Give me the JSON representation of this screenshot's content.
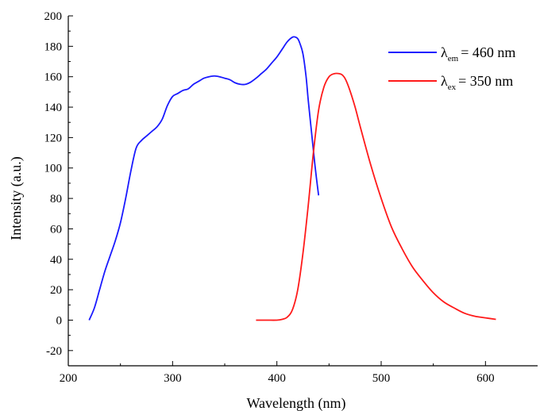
{
  "chart_data": {
    "type": "line",
    "xlabel": "Wavelength (nm)",
    "ylabel": "Intensity (a.u.)",
    "xlim": [
      200,
      650
    ],
    "ylim": [
      -30,
      200
    ],
    "x_ticks": [
      200,
      300,
      400,
      500,
      600
    ],
    "y_ticks": [
      -20,
      0,
      20,
      40,
      60,
      80,
      100,
      120,
      140,
      160,
      180,
      200
    ],
    "x_tick_labels": [
      "200",
      "300",
      "400",
      "500",
      "600"
    ],
    "y_tick_labels": [
      "-20",
      "0",
      "20",
      "40",
      "60",
      "80",
      "100",
      "120",
      "140",
      "160",
      "180",
      "200"
    ],
    "grid": false,
    "legend_position": "top-right",
    "series": [
      {
        "legend_symbol": "λ",
        "legend_subscript": "em",
        "legend_value": "= 460 nm",
        "color": "#1a1aff",
        "x": [
          220,
          225,
          230,
          235,
          240,
          245,
          250,
          255,
          260,
          265,
          270,
          275,
          280,
          285,
          290,
          295,
          300,
          305,
          310,
          315,
          320,
          325,
          330,
          335,
          340,
          345,
          350,
          355,
          360,
          365,
          370,
          375,
          380,
          385,
          390,
          395,
          400,
          405,
          410,
          415,
          418,
          420,
          422,
          425,
          428,
          430,
          433,
          436,
          438,
          440
        ],
        "y": [
          0,
          8,
          20,
          32,
          42,
          52,
          64,
          80,
          98,
          113,
          118,
          121,
          124,
          127,
          132,
          141,
          147,
          149,
          151,
          152,
          155,
          157,
          159,
          160,
          160.5,
          160,
          159,
          158,
          156,
          155,
          155,
          156.5,
          159,
          162,
          165,
          169,
          173,
          178,
          183,
          186,
          186,
          185,
          182,
          175,
          160,
          145,
          125,
          105,
          93,
          82
        ]
      },
      {
        "legend_symbol": "λ",
        "legend_subscript": "ex",
        "legend_value": "= 350 nm",
        "color": "#ff1a1a",
        "x": [
          380,
          390,
          400,
          405,
          410,
          415,
          420,
          425,
          430,
          435,
          440,
          445,
          450,
          455,
          460,
          463,
          466,
          470,
          475,
          480,
          490,
          500,
          510,
          520,
          530,
          540,
          550,
          560,
          570,
          580,
          590,
          600,
          610
        ],
        "y": [
          0,
          0,
          0,
          0.5,
          2,
          7,
          20,
          44,
          75,
          110,
          138,
          153,
          160,
          162,
          162,
          161,
          158,
          151,
          140,
          127,
          102,
          80,
          61,
          47,
          35,
          26,
          18,
          12,
          8,
          4.5,
          2.5,
          1.5,
          0.5
        ]
      }
    ]
  }
}
